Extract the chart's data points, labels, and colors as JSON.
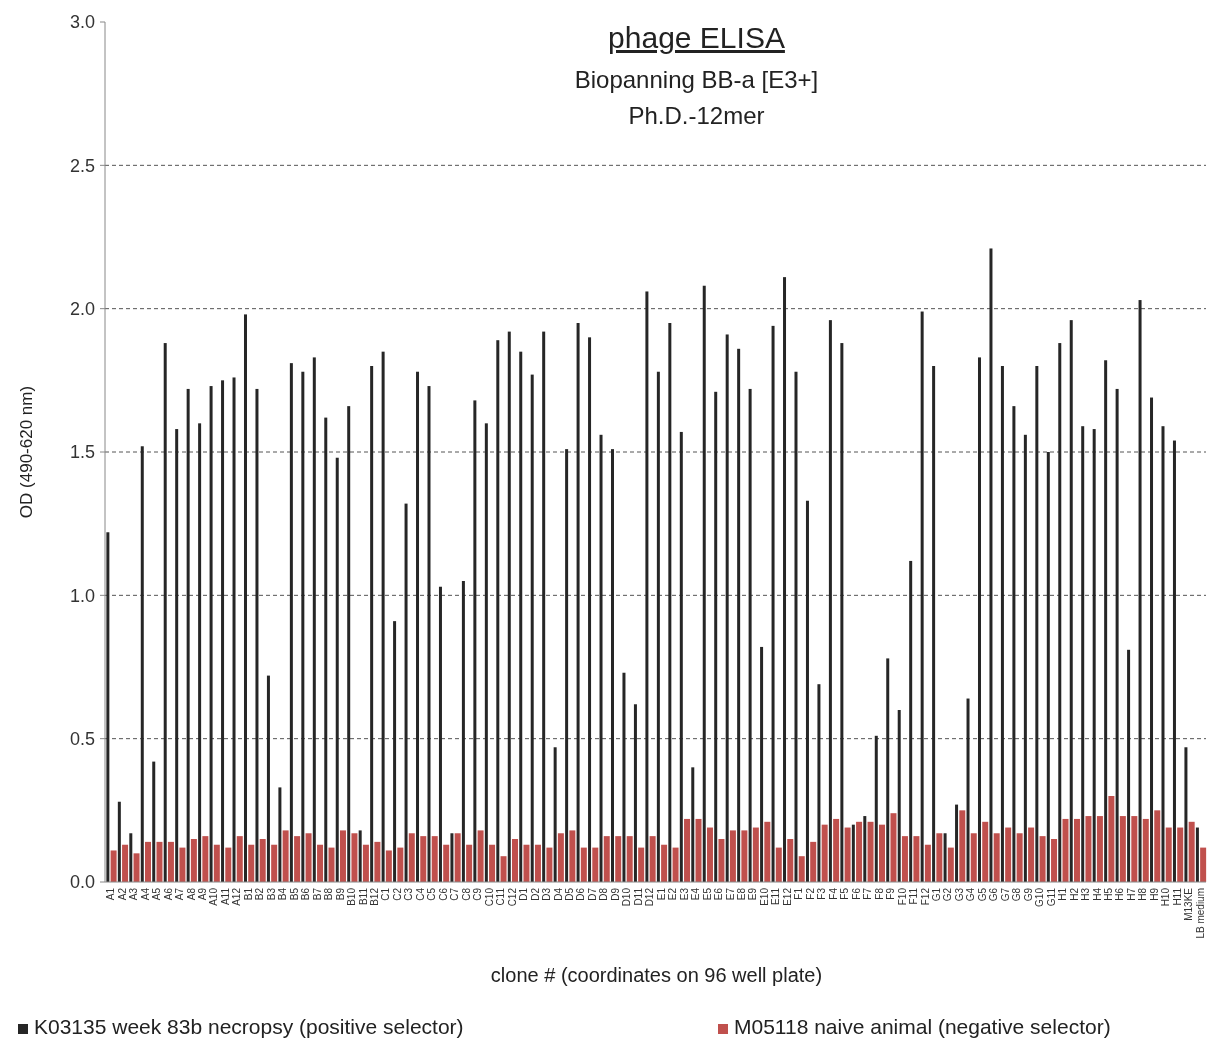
{
  "chart_data": {
    "type": "bar",
    "title": "phage ELISA",
    "subtitle": "Biopanning BB-a [E3+]\nPh.D.-12mer",
    "xlabel": "clone # (coordinates on 96 well plate)",
    "ylabel": "OD (490-620 nm)",
    "categories": [
      "A1",
      "A2",
      "A3",
      "A4",
      "A5",
      "A6",
      "A7",
      "A8",
      "A9",
      "A10",
      "A11",
      "A12",
      "B1",
      "B2",
      "B3",
      "B4",
      "B5",
      "B6",
      "B7",
      "B8",
      "B9",
      "B10",
      "B11",
      "B12",
      "C1",
      "C2",
      "C3",
      "C4",
      "C5",
      "C6",
      "C7",
      "C8",
      "C9",
      "C10",
      "C11",
      "C12",
      "D1",
      "D2",
      "D3",
      "D4",
      "D5",
      "D6",
      "D7",
      "D8",
      "D9",
      "D10",
      "D11",
      "D12",
      "E1",
      "E2",
      "E3",
      "E4",
      "E5",
      "E6",
      "E7",
      "E8",
      "E9",
      "E10",
      "E11",
      "E12",
      "F1",
      "F2",
      "F3",
      "F4",
      "F5",
      "F6",
      "F7",
      "F8",
      "F9",
      "F10",
      "F11",
      "F12",
      "G1",
      "G2",
      "G3",
      "G4",
      "G5",
      "G6",
      "G7",
      "G8",
      "G9",
      "G10",
      "G11",
      "H1",
      "H2",
      "H3",
      "H4",
      "H5",
      "H6",
      "H7",
      "H8",
      "H9",
      "H10",
      "H11",
      "M13KE",
      "LB medium"
    ],
    "series": [
      {
        "name": "K03135 week 83b necropsy (positive selector)",
        "color": "#262626",
        "values": [
          1.22,
          0.28,
          0.17,
          1.52,
          0.42,
          1.88,
          1.58,
          1.72,
          1.6,
          1.73,
          1.75,
          1.76,
          1.98,
          1.72,
          0.72,
          0.33,
          1.81,
          1.78,
          1.83,
          1.62,
          1.48,
          1.66,
          0.18,
          1.8,
          1.85,
          0.91,
          1.32,
          1.78,
          1.73,
          1.03,
          0.17,
          1.05,
          1.68,
          1.6,
          1.89,
          1.92,
          1.85,
          1.77,
          1.92,
          0.47,
          1.51,
          1.95,
          1.9,
          1.56,
          1.51,
          0.73,
          0.62,
          2.06,
          1.78,
          1.95,
          1.57,
          0.4,
          2.08,
          1.71,
          1.91,
          1.86,
          1.72,
          0.82,
          1.94,
          2.11,
          1.78,
          1.33,
          0.69,
          1.96,
          1.88,
          0.2,
          0.23,
          0.51,
          0.78,
          0.6,
          1.12,
          1.99,
          1.8,
          0.17,
          0.27,
          0.64,
          1.83,
          2.21,
          1.8,
          1.66,
          1.56,
          1.8,
          1.5,
          1.88,
          1.96,
          1.59,
          1.58,
          1.82,
          1.72,
          0.81,
          2.03,
          1.69,
          1.59,
          1.54,
          0.47,
          0.19
        ]
      },
      {
        "name": "M05118 naive animal (negative selector)",
        "color": "#c0504d",
        "values": [
          0.11,
          0.13,
          0.1,
          0.14,
          0.14,
          0.14,
          0.12,
          0.15,
          0.16,
          0.13,
          0.12,
          0.16,
          0.13,
          0.15,
          0.13,
          0.18,
          0.16,
          0.17,
          0.13,
          0.12,
          0.18,
          0.17,
          0.13,
          0.14,
          0.11,
          0.12,
          0.17,
          0.16,
          0.16,
          0.13,
          0.17,
          0.13,
          0.18,
          0.13,
          0.09,
          0.15,
          0.13,
          0.13,
          0.12,
          0.17,
          0.18,
          0.12,
          0.12,
          0.16,
          0.16,
          0.16,
          0.12,
          0.16,
          0.13,
          0.12,
          0.22,
          0.22,
          0.19,
          0.15,
          0.18,
          0.18,
          0.19,
          0.21,
          0.12,
          0.15,
          0.09,
          0.14,
          0.2,
          0.22,
          0.19,
          0.21,
          0.21,
          0.2,
          0.24,
          0.16,
          0.16,
          0.13,
          0.17,
          0.12,
          0.25,
          0.17,
          0.21,
          0.17,
          0.19,
          0.17,
          0.19,
          0.16,
          0.15,
          0.22,
          0.22,
          0.23,
          0.23,
          0.3,
          0.23,
          0.23,
          0.22,
          0.25,
          0.19,
          0.19,
          0.21,
          0.12
        ]
      }
    ],
    "ylim": [
      0,
      3
    ],
    "yticks": [
      {
        "value": 0,
        "label": "0.0"
      },
      {
        "value": 0.5,
        "label": "0.5"
      },
      {
        "value": 1,
        "label": "1.0"
      },
      {
        "value": 1.5,
        "label": "1.5"
      },
      {
        "value": 2,
        "label": "2.0"
      },
      {
        "value": 2.5,
        "label": "2.5"
      },
      {
        "value": 3,
        "label": "3.0"
      }
    ],
    "grid": "y",
    "legend": "bottom"
  }
}
